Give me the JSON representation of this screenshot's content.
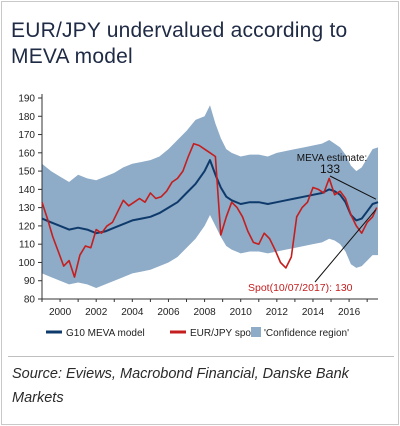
{
  "title": "EUR/JPY undervalued according to MEVA model",
  "source": "Source: Eviews, Macrobond Financial, Danske Bank Markets",
  "colors": {
    "meva": "#0e3a6b",
    "spot": "#c41e1e",
    "band": "#8eabc7",
    "axis": "#333333",
    "grid": "#ffffff"
  },
  "chart_data": {
    "type": "line",
    "title": "EUR/JPY undervalued according to MEVA model",
    "xlabel": "",
    "ylabel": "",
    "xlim": [
      1999.0,
      2017.6
    ],
    "ylim": [
      80,
      190
    ],
    "x_ticks": [
      2000,
      2002,
      2004,
      2006,
      2008,
      2010,
      2012,
      2014,
      2016
    ],
    "y_ticks": [
      80,
      90,
      100,
      110,
      120,
      130,
      140,
      150,
      160,
      170,
      180,
      190
    ],
    "grid": false,
    "legend_position": "bottom",
    "series": [
      {
        "name": "G10 MEVA model",
        "type": "line",
        "x": [
          1999.0,
          1999.5,
          2000.0,
          2000.5,
          2001.0,
          2001.5,
          2002.0,
          2002.5,
          2003.0,
          2003.5,
          2004.0,
          2004.5,
          2005.0,
          2005.5,
          2006.0,
          2006.5,
          2007.0,
          2007.5,
          2008.0,
          2008.3,
          2008.6,
          2008.9,
          2009.2,
          2009.5,
          2010.0,
          2010.5,
          2011.0,
          2011.5,
          2012.0,
          2012.5,
          2013.0,
          2013.5,
          2014.0,
          2014.5,
          2014.9,
          2015.2,
          2015.5,
          2015.8,
          2016.1,
          2016.4,
          2016.7,
          2017.0,
          2017.3,
          2017.6
        ],
        "values": [
          124,
          122,
          120,
          118,
          119,
          118,
          116,
          117,
          119,
          121,
          123,
          124,
          125,
          127,
          130,
          133,
          138,
          143,
          150,
          156,
          148,
          141,
          136,
          134,
          132,
          133,
          133,
          132,
          133,
          134,
          135,
          136,
          137,
          138,
          140,
          139,
          137,
          133,
          126,
          123,
          124,
          128,
          132,
          133
        ]
      },
      {
        "name": "EUR/JPY spot",
        "type": "line",
        "x": [
          1999.0,
          1999.3,
          1999.6,
          1999.9,
          2000.2,
          2000.5,
          2000.8,
          2001.1,
          2001.4,
          2001.7,
          2002.0,
          2002.3,
          2002.6,
          2002.9,
          2003.2,
          2003.5,
          2003.8,
          2004.1,
          2004.4,
          2004.7,
          2005.0,
          2005.3,
          2005.6,
          2005.9,
          2006.2,
          2006.5,
          2006.8,
          2007.1,
          2007.4,
          2007.7,
          2008.0,
          2008.3,
          2008.6,
          2008.9,
          2009.2,
          2009.5,
          2009.8,
          2010.1,
          2010.4,
          2010.7,
          2011.0,
          2011.3,
          2011.6,
          2011.9,
          2012.2,
          2012.5,
          2012.8,
          2013.1,
          2013.4,
          2013.7,
          2014.0,
          2014.3,
          2014.6,
          2014.9,
          2015.2,
          2015.5,
          2015.8,
          2016.1,
          2016.4,
          2016.7,
          2017.0,
          2017.3,
          2017.53
        ],
        "values": [
          133,
          124,
          114,
          106,
          98,
          101,
          92,
          104,
          109,
          108,
          118,
          116,
          120,
          122,
          128,
          134,
          131,
          133,
          135,
          133,
          138,
          135,
          136,
          139,
          144,
          146,
          150,
          158,
          165,
          164,
          162,
          160,
          158,
          115,
          125,
          133,
          130,
          125,
          117,
          111,
          110,
          116,
          113,
          107,
          100,
          97,
          103,
          125,
          130,
          133,
          141,
          140,
          138,
          146,
          137,
          139,
          135,
          126,
          120,
          116,
          122,
          125,
          130
        ]
      },
      {
        "name": "'Confidence region'",
        "type": "area",
        "x": [
          1999.0,
          1999.5,
          2000.0,
          2000.5,
          2001.0,
          2001.5,
          2002.0,
          2002.5,
          2003.0,
          2003.5,
          2004.0,
          2004.5,
          2005.0,
          2005.5,
          2006.0,
          2006.5,
          2007.0,
          2007.5,
          2008.0,
          2008.3,
          2008.6,
          2008.9,
          2009.2,
          2009.5,
          2010.0,
          2010.5,
          2011.0,
          2011.5,
          2012.0,
          2012.5,
          2013.0,
          2013.5,
          2014.0,
          2014.5,
          2014.9,
          2015.2,
          2015.5,
          2015.8,
          2016.1,
          2016.4,
          2016.7,
          2017.0,
          2017.3,
          2017.6
        ],
        "upper": [
          154,
          150,
          147,
          144,
          148,
          146,
          145,
          147,
          149,
          152,
          154,
          155,
          156,
          158,
          162,
          167,
          172,
          178,
          180,
          186,
          176,
          168,
          162,
          160,
          158,
          159,
          159,
          158,
          160,
          161,
          162,
          163,
          164,
          165,
          167,
          165,
          163,
          159,
          153,
          150,
          152,
          157,
          162,
          163
        ],
        "lower": [
          94,
          92,
          90,
          88,
          89,
          88,
          86,
          88,
          90,
          92,
          94,
          95,
          96,
          98,
          100,
          103,
          108,
          113,
          120,
          126,
          120,
          114,
          109,
          107,
          105,
          106,
          106,
          105,
          106,
          107,
          108,
          109,
          110,
          111,
          113,
          112,
          110,
          106,
          99,
          97,
          98,
          101,
          104,
          104
        ]
      }
    ],
    "annotations": [
      {
        "text": "MEVA estimate:",
        "x": 2015.5,
        "y": 148
      },
      {
        "text": "133",
        "x": 2015.5,
        "y": 143
      },
      {
        "text": "Spot(10/07/2017): 130",
        "x": 2014.5,
        "y": 82
      }
    ]
  }
}
